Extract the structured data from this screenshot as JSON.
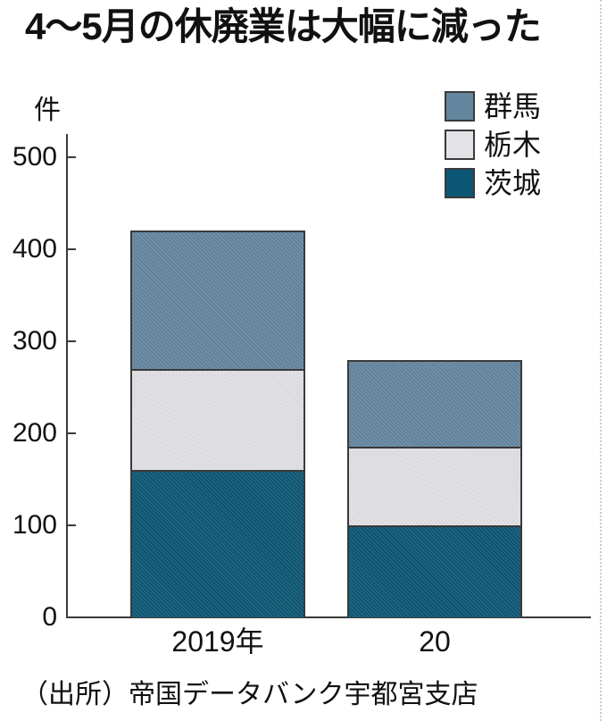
{
  "title": "4～5月の休廃業は大幅に減った",
  "unit_label": "件",
  "source": "（出所）帝国データバンク宇都宮支店",
  "colors": {
    "axis": "#3a3a3a",
    "text": "#111111",
    "background": "#ffffff",
    "gunma": "#64869f",
    "tochigi": "#e2e2e7",
    "ibaraki": "#0b5674"
  },
  "chart_data": {
    "type": "bar",
    "stacked": true,
    "title": "4～5月の休廃業は大幅に減った",
    "ylabel": "件",
    "xlabel": "",
    "ylim": [
      0,
      500
    ],
    "yticks": [
      0,
      100,
      200,
      300,
      400,
      500
    ],
    "grid": false,
    "legend_position": "top-right",
    "legend_order_top_to_bottom": [
      "群馬",
      "栃木",
      "茨城"
    ],
    "categories": [
      "2019年",
      "20"
    ],
    "series": [
      {
        "key": "ibaraki",
        "name": "茨城",
        "color": "#0b5674",
        "values": [
          160,
          100
        ]
      },
      {
        "key": "tochigi",
        "name": "栃木",
        "color": "#e2e2e7",
        "values": [
          110,
          85
        ]
      },
      {
        "key": "gunma",
        "name": "群馬",
        "color": "#64869f",
        "values": [
          150,
          95
        ]
      }
    ],
    "totals": [
      420,
      280
    ]
  }
}
